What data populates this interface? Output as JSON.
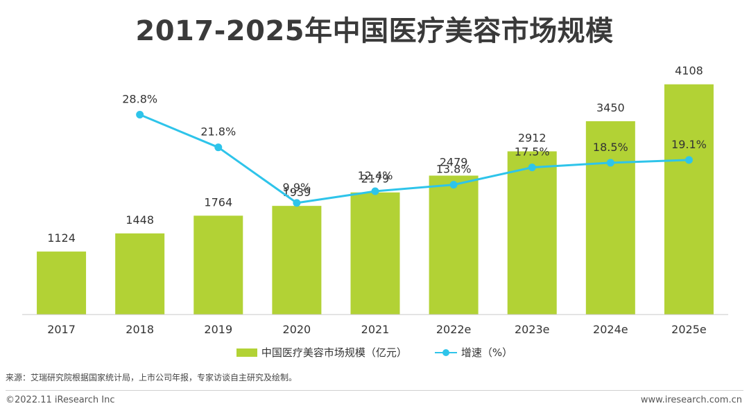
{
  "title": "2017-2025年中国医疗美容市场规模",
  "chart_data": {
    "type": "bar",
    "categories": [
      "2017",
      "2018",
      "2019",
      "2020",
      "2021",
      "2022e",
      "2023e",
      "2024e",
      "2025e"
    ],
    "series": [
      {
        "name": "中国医疗美容市场规模（亿元）",
        "type": "bar",
        "values": [
          1124,
          1448,
          1764,
          1939,
          2179,
          2479,
          2912,
          3450,
          4108
        ],
        "labels": [
          "1124",
          "1448",
          "1764",
          "1939",
          "2179",
          "2479",
          "2912",
          "3450",
          "4108"
        ]
      },
      {
        "name": "增速（%）",
        "type": "line",
        "values": [
          null,
          28.8,
          21.8,
          9.9,
          12.4,
          13.8,
          17.5,
          18.5,
          19.1
        ],
        "labels": [
          "",
          "28.8%",
          "21.8%",
          "9.9%",
          "12.4%",
          "13.8%",
          "17.5%",
          "18.5%",
          "19.1%"
        ]
      }
    ],
    "ylim": [
      0,
      4500
    ],
    "y2lim": [
      -14,
      40
    ],
    "xlabel": "",
    "ylabel": "",
    "legend": "bottom",
    "grid": false
  },
  "colors": {
    "bar": "#b2d235",
    "line": "#2ec4ea",
    "text": "#333333",
    "axis": "#c8c8c8"
  },
  "legend": {
    "bar_label": "中国医疗美容市场规模（亿元）",
    "line_label": "增速（%）"
  },
  "source": "来源：艾瑞研究院根据国家统计局，上市公司年报，专家访谈自主研究及绘制。",
  "footer": {
    "copyright": "©2022.11 iResearch Inc",
    "website": "www.iresearch.com.cn"
  }
}
